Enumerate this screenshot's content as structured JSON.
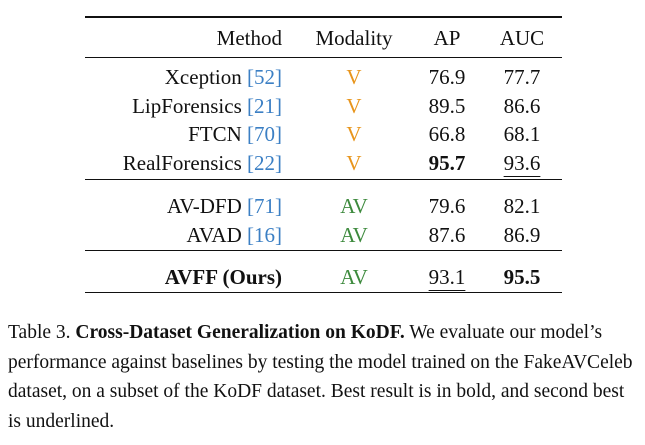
{
  "table": {
    "header": [
      "Method",
      "Modality",
      "AP",
      "AUC"
    ],
    "groups": [
      [
        {
          "method": "Xception",
          "ref": "[52]",
          "modality": "V",
          "modality_color": "#e8951c",
          "ap": 76.9,
          "auc": 77.7
        },
        {
          "method": "LipForensics",
          "ref": "[21]",
          "modality": "V",
          "modality_color": "#e8951c",
          "ap": 89.5,
          "auc": 86.6
        },
        {
          "method": "FTCN",
          "ref": "[70]",
          "modality": "V",
          "modality_color": "#e8951c",
          "ap": 66.8,
          "auc": 68.1
        },
        {
          "method": "RealForensics",
          "ref": "[22]",
          "modality": "V",
          "modality_color": "#e8951c",
          "ap": 95.7,
          "auc": 93.6,
          "bold": [
            "ap"
          ],
          "underline": [
            "auc"
          ]
        }
      ],
      [
        {
          "method": "AV-DFD",
          "ref": "[71]",
          "modality": "AV",
          "modality_color": "#3d8a3d",
          "ap": 79.6,
          "auc": 82.1
        },
        {
          "method": "AVAD",
          "ref": "[16]",
          "modality": "AV",
          "modality_color": "#3d8a3d",
          "ap": 87.6,
          "auc": 86.9
        }
      ],
      [
        {
          "method": "AVFF (Ours)",
          "modality": "AV",
          "modality_color": "#3d8a3d",
          "ap": 93.1,
          "auc": 95.5,
          "bold": [
            "method",
            "auc"
          ],
          "underline": [
            "ap"
          ]
        }
      ]
    ],
    "ref_color": "#3b7fc4"
  },
  "caption": {
    "label": "Table 3.",
    "title": "Cross-Dataset Generalization on KoDF.",
    "text": "We evaluate our model’s performance against baselines by testing the model trained on the FakeAVCeleb dataset, on a subset of the KoDF dataset. Best result is in bold, and second best is underlined."
  }
}
